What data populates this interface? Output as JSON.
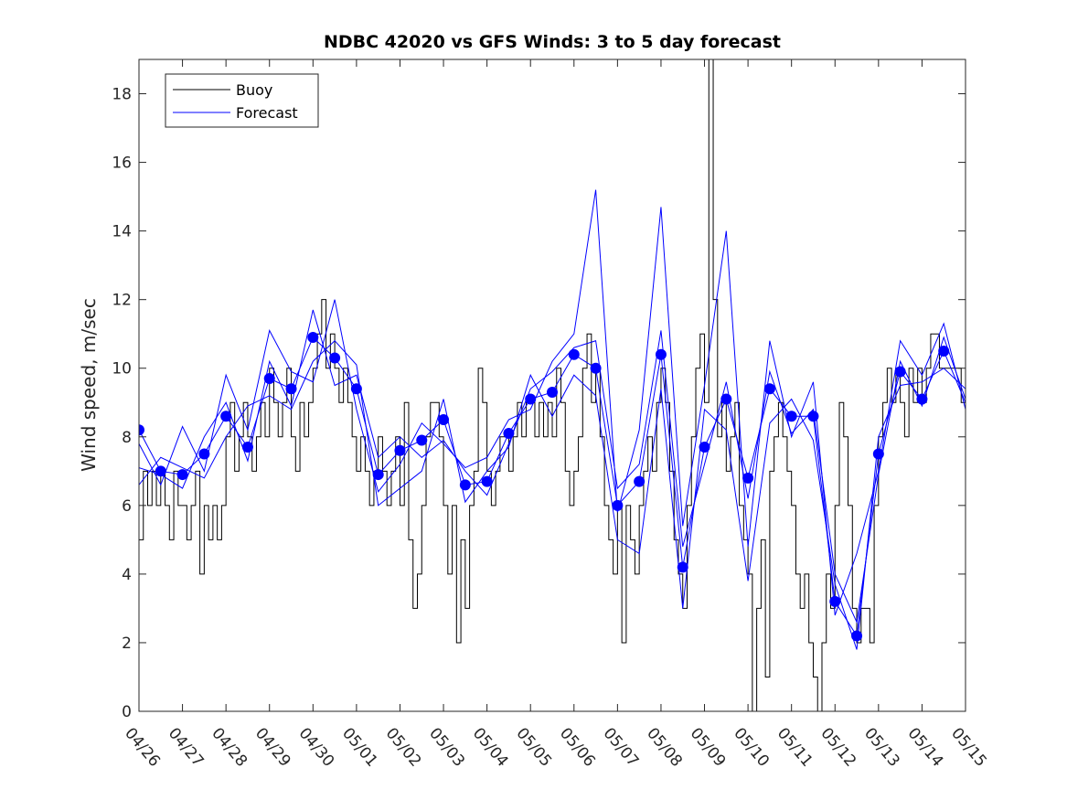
{
  "chart_data": {
    "type": "line",
    "title": "NDBC 42020 vs GFS Winds: 3 to 5 day forecast",
    "xlabel": "",
    "ylabel": "Wind speed, m/sec",
    "ylim": [
      0,
      19
    ],
    "yticks": [
      0,
      2,
      4,
      6,
      8,
      10,
      12,
      14,
      16,
      18
    ],
    "xlim": [
      0,
      19
    ],
    "xtick_labels": [
      "04/26",
      "04/27",
      "04/28",
      "04/29",
      "04/30",
      "05/01",
      "05/02",
      "05/03",
      "05/04",
      "05/05",
      "05/06",
      "05/07",
      "05/08",
      "05/09",
      "05/10",
      "05/11",
      "05/12",
      "05/13",
      "05/14",
      "05/15"
    ],
    "grid": false,
    "legend_position": "top-left",
    "colors": {
      "buoy": "#000000",
      "forecast": "#0000ff"
    },
    "series": [
      {
        "name": "Buoy",
        "x": [
          0.0,
          0.1,
          0.2,
          0.3,
          0.4,
          0.5,
          0.6,
          0.7,
          0.8,
          0.9,
          1.0,
          1.1,
          1.2,
          1.3,
          1.4,
          1.5,
          1.6,
          1.7,
          1.8,
          1.9,
          2.0,
          2.1,
          2.2,
          2.3,
          2.4,
          2.5,
          2.6,
          2.7,
          2.8,
          2.9,
          3.0,
          3.1,
          3.2,
          3.3,
          3.4,
          3.5,
          3.6,
          3.7,
          3.8,
          3.9,
          4.0,
          4.1,
          4.2,
          4.3,
          4.4,
          4.5,
          4.6,
          4.7,
          4.8,
          4.9,
          5.0,
          5.1,
          5.2,
          5.3,
          5.4,
          5.5,
          5.6,
          5.7,
          5.8,
          5.9,
          6.0,
          6.1,
          6.2,
          6.3,
          6.4,
          6.5,
          6.6,
          6.7,
          6.8,
          6.9,
          7.0,
          7.1,
          7.2,
          7.3,
          7.4,
          7.5,
          7.6,
          7.7,
          7.8,
          7.9,
          8.0,
          8.1,
          8.2,
          8.3,
          8.4,
          8.5,
          8.6,
          8.7,
          8.8,
          8.9,
          9.0,
          9.1,
          9.2,
          9.3,
          9.4,
          9.5,
          9.6,
          9.7,
          9.8,
          9.9,
          10.0,
          10.1,
          10.2,
          10.3,
          10.4,
          10.5,
          10.6,
          10.7,
          10.8,
          10.9,
          11.0,
          11.1,
          11.2,
          11.3,
          11.4,
          11.5,
          11.6,
          11.7,
          11.8,
          11.9,
          12.0,
          12.1,
          12.2,
          12.3,
          12.4,
          12.5,
          12.6,
          12.7,
          12.8,
          12.9,
          13.0,
          13.1,
          13.2,
          13.3,
          13.4,
          13.5,
          13.6,
          13.7,
          13.8,
          13.9,
          14.0,
          14.1,
          14.2,
          14.3,
          14.4,
          14.5,
          14.6,
          14.7,
          14.8,
          14.9,
          15.0,
          15.1,
          15.2,
          15.3,
          15.4,
          15.5,
          15.6,
          15.7,
          15.8,
          15.9,
          16.0,
          16.1,
          16.2,
          16.3,
          16.4,
          16.5,
          16.6,
          16.7,
          16.8,
          16.9,
          17.0,
          17.1,
          17.2,
          17.3,
          17.4,
          17.5,
          17.6,
          17.7,
          17.8,
          17.9,
          18.0,
          18.1,
          18.2,
          18.3,
          18.4,
          18.5,
          18.6,
          18.7,
          18.8,
          18.9,
          19.0
        ],
        "y": [
          5,
          7,
          6,
          7,
          6,
          7,
          6,
          5,
          7,
          6,
          6,
          5,
          6,
          7,
          4,
          6,
          5,
          6,
          5,
          6,
          8,
          9,
          7,
          8,
          9,
          8,
          7,
          8,
          9,
          8,
          10,
          9,
          8,
          9,
          10,
          8,
          7,
          9,
          8,
          9,
          10,
          11,
          12,
          10,
          11,
          10,
          9,
          10,
          9,
          8,
          7,
          8,
          7,
          6,
          7,
          8,
          7,
          6,
          7,
          8,
          6,
          9,
          5,
          3,
          4,
          6,
          8,
          9,
          9,
          8,
          6,
          4,
          6,
          2,
          5,
          3,
          6,
          7,
          10,
          9,
          7,
          6,
          7,
          8,
          8,
          7,
          8,
          9,
          8,
          9,
          9,
          8,
          9,
          8,
          9,
          8,
          10,
          9,
          7,
          6,
          7,
          8,
          10,
          11,
          9,
          10,
          8,
          6,
          5,
          4,
          6,
          2,
          6,
          5,
          4,
          6,
          7,
          8,
          7,
          9,
          10,
          9,
          7,
          5,
          4,
          3,
          6,
          8,
          10,
          11,
          9,
          19,
          12,
          8,
          9,
          7,
          8,
          9,
          6,
          5,
          4,
          0,
          3,
          5,
          1,
          7,
          8,
          9,
          8,
          7,
          6,
          4,
          3,
          4,
          2,
          1,
          0,
          2,
          4,
          3,
          6,
          9,
          8,
          6,
          3,
          2,
          3,
          3,
          2,
          6,
          8,
          9,
          10,
          9,
          10,
          9,
          8,
          10,
          9,
          10,
          9,
          10,
          11,
          11,
          10,
          10,
          10,
          10,
          10,
          9,
          9
        ]
      },
      {
        "name": "Forecast",
        "x": [
          0.0,
          0.5,
          1.0,
          1.5,
          2.0,
          2.5,
          3.0,
          3.5,
          4.0,
          4.5,
          5.0,
          5.5,
          6.0,
          6.5,
          7.0,
          7.5,
          8.0,
          8.5,
          9.0,
          9.5,
          10.0,
          10.5,
          11.0,
          11.5,
          12.0,
          12.5,
          13.0,
          13.5,
          14.0,
          14.5,
          15.0,
          15.5,
          16.0,
          16.5,
          17.0,
          17.5,
          18.0,
          18.5,
          19.0
        ],
        "y": [
          8.2,
          7.0,
          6.9,
          7.5,
          8.6,
          7.7,
          9.7,
          9.4,
          10.9,
          10.3,
          9.4,
          6.9,
          7.6,
          7.9,
          8.5,
          6.6,
          6.7,
          8.1,
          9.1,
          9.3,
          10.4,
          10.0,
          6.0,
          6.7,
          10.4,
          4.2,
          7.7,
          9.1,
          6.8,
          9.4,
          8.6,
          8.6,
          3.2,
          2.2,
          7.5,
          9.9,
          9.1,
          10.5,
          9.0
        ]
      },
      {
        "name": "",
        "x": [
          0.0,
          0.5,
          1.0,
          1.5,
          2.0,
          2.5,
          3.0,
          3.5,
          4.0,
          4.5,
          5.0,
          5.5,
          6.0,
          6.5,
          7.0,
          7.5,
          8.0,
          8.5,
          9.0,
          9.5,
          10.0,
          10.5,
          11.0,
          11.5,
          12.0,
          12.5,
          13.0,
          13.5,
          14.0,
          14.5,
          15.0,
          15.5,
          16.0,
          16.5,
          17.0,
          17.5,
          18.0,
          18.5,
          19.0
        ],
        "y": [
          7.8,
          6.6,
          8.3,
          7.0,
          9.8,
          8.2,
          11.1,
          9.9,
          9.6,
          12.0,
          8.8,
          6.4,
          7.2,
          8.4,
          7.8,
          7.1,
          7.4,
          8.5,
          8.8,
          10.2,
          11.0,
          15.2,
          5.8,
          8.2,
          14.7,
          5.4,
          9.5,
          14.0,
          4.8,
          10.8,
          8.0,
          9.6,
          2.8,
          4.6,
          7.0,
          10.8,
          9.8,
          11.3,
          8.8
        ]
      },
      {
        "name": "",
        "x": [
          0.0,
          0.5,
          1.0,
          1.5,
          2.0,
          2.5,
          3.0,
          3.5,
          4.0,
          4.5,
          5.0,
          5.5,
          6.0,
          6.5,
          7.0,
          7.5,
          8.0,
          8.5,
          9.0,
          9.5,
          10.0,
          10.5,
          11.0,
          11.5,
          12.0,
          12.5,
          13.0,
          13.5,
          14.0,
          14.5,
          15.0,
          15.5,
          16.0,
          16.5,
          17.0,
          17.5,
          18.0,
          18.5,
          19.0
        ],
        "y": [
          6.6,
          7.4,
          7.1,
          6.8,
          8.0,
          8.9,
          9.2,
          8.8,
          10.2,
          10.8,
          10.1,
          6.0,
          6.5,
          7.0,
          9.1,
          6.1,
          7.0,
          7.7,
          9.8,
          8.6,
          9.8,
          9.2,
          5.0,
          4.6,
          9.4,
          3.0,
          8.8,
          8.2,
          3.8,
          8.4,
          9.1,
          7.9,
          3.7,
          1.8,
          8.0,
          9.5,
          9.6,
          10.0,
          9.4
        ]
      },
      {
        "name": "",
        "x": [
          0.0,
          0.5,
          1.0,
          1.5,
          2.0,
          2.5,
          3.0,
          3.5,
          4.0,
          4.5,
          5.0,
          5.5,
          6.0,
          6.5,
          7.0,
          7.5,
          8.0,
          8.5,
          9.0,
          9.5,
          10.0,
          10.5,
          11.0,
          11.5,
          12.0,
          12.5,
          13.0,
          13.5,
          14.0,
          14.5,
          15.0,
          15.5,
          16.0,
          16.5,
          17.0,
          17.5,
          18.0,
          18.5,
          19.0
        ],
        "y": [
          7.1,
          6.9,
          6.5,
          8.0,
          9.0,
          7.3,
          10.2,
          8.9,
          11.7,
          9.5,
          9.8,
          7.4,
          8.0,
          7.4,
          7.9,
          7.0,
          6.3,
          7.8,
          9.4,
          9.9,
          10.6,
          10.8,
          6.5,
          7.2,
          11.1,
          4.8,
          7.2,
          9.6,
          6.2,
          9.9,
          8.1,
          8.8,
          4.0,
          2.6,
          6.9,
          10.2,
          8.9,
          10.9,
          9.1
        ]
      }
    ],
    "markers": {
      "series": "Forecast",
      "x": [
        0.0,
        0.5,
        1.0,
        1.5,
        2.0,
        2.5,
        3.0,
        3.5,
        4.0,
        4.5,
        5.0,
        5.5,
        6.0,
        6.5,
        7.0,
        7.5,
        8.0,
        8.5,
        9.0,
        9.5,
        10.0,
        10.5,
        11.0,
        11.5,
        12.0,
        12.5,
        13.0,
        13.5,
        14.0,
        14.5,
        15.0,
        15.5,
        16.0,
        16.5,
        17.0,
        17.5,
        18.0,
        18.5
      ],
      "y": [
        8.2,
        7.0,
        6.9,
        7.5,
        8.6,
        7.7,
        9.7,
        9.4,
        10.9,
        10.3,
        9.4,
        6.9,
        7.6,
        7.9,
        8.5,
        6.6,
        6.7,
        8.1,
        9.1,
        9.3,
        10.4,
        10.0,
        6.0,
        6.7,
        10.4,
        4.2,
        7.7,
        9.1,
        6.8,
        9.4,
        8.6,
        8.6,
        3.2,
        2.2,
        7.5,
        9.9,
        9.1,
        10.5
      ]
    }
  }
}
